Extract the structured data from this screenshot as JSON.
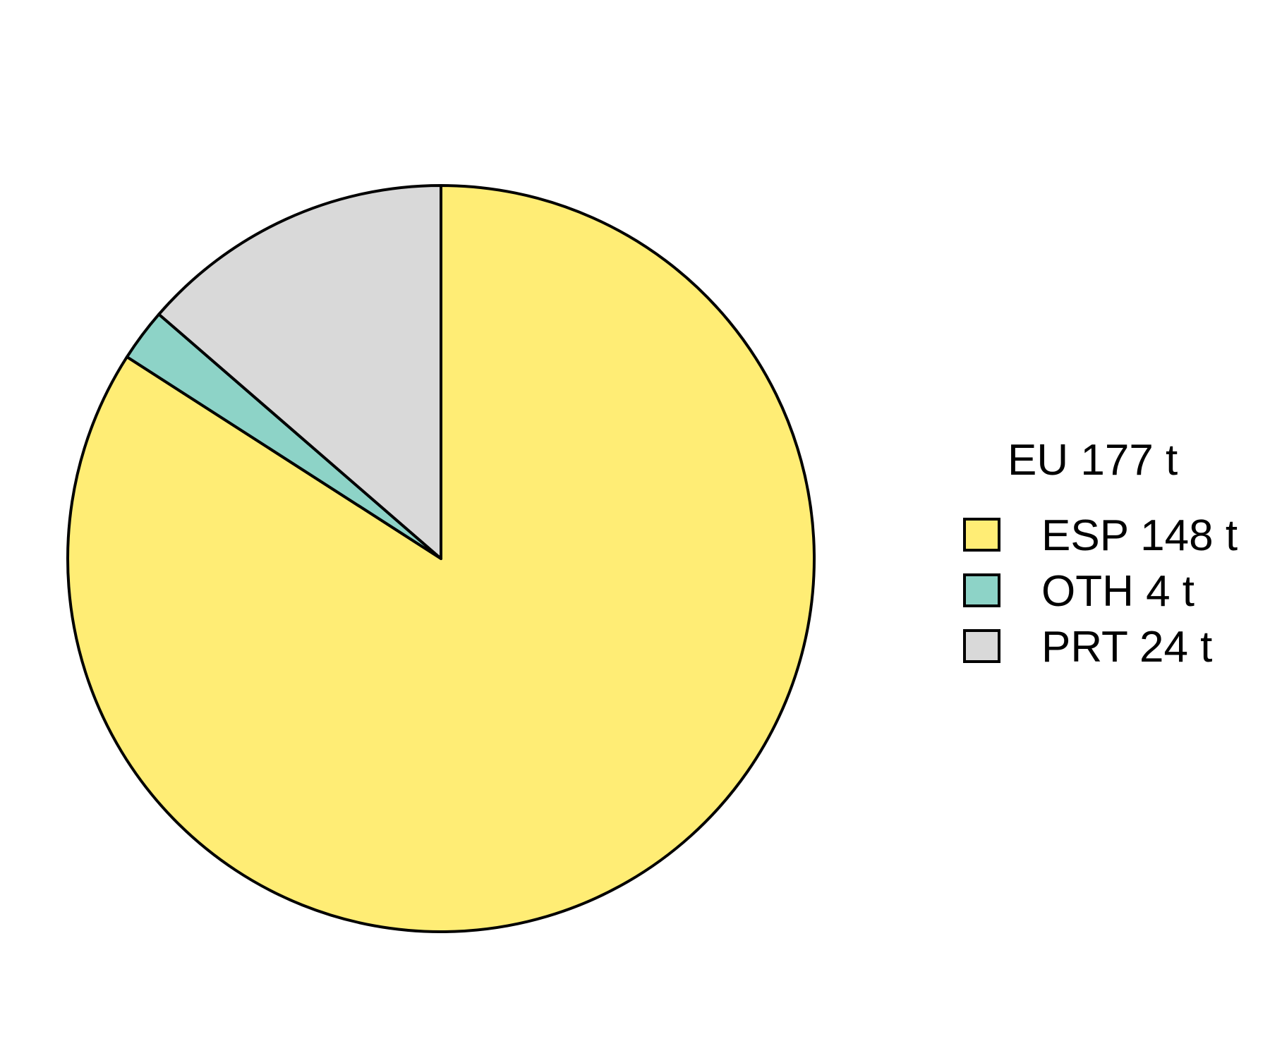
{
  "chart_data": {
    "type": "pie",
    "legend_title": "EU 177 t",
    "legend_position": "right",
    "start": "12 o'clock",
    "direction": "clockwise",
    "slices": [
      {
        "label": "ESP 148 t",
        "category": "ESP",
        "value": 148,
        "color": "#FFED75"
      },
      {
        "label": "OTH 4 t",
        "category": "OTH",
        "value": 4,
        "color": "#8DD3C7"
      },
      {
        "label": "PRT 24 t",
        "category": "PRT",
        "value": 24,
        "color": "#D9D9D9"
      }
    ]
  }
}
